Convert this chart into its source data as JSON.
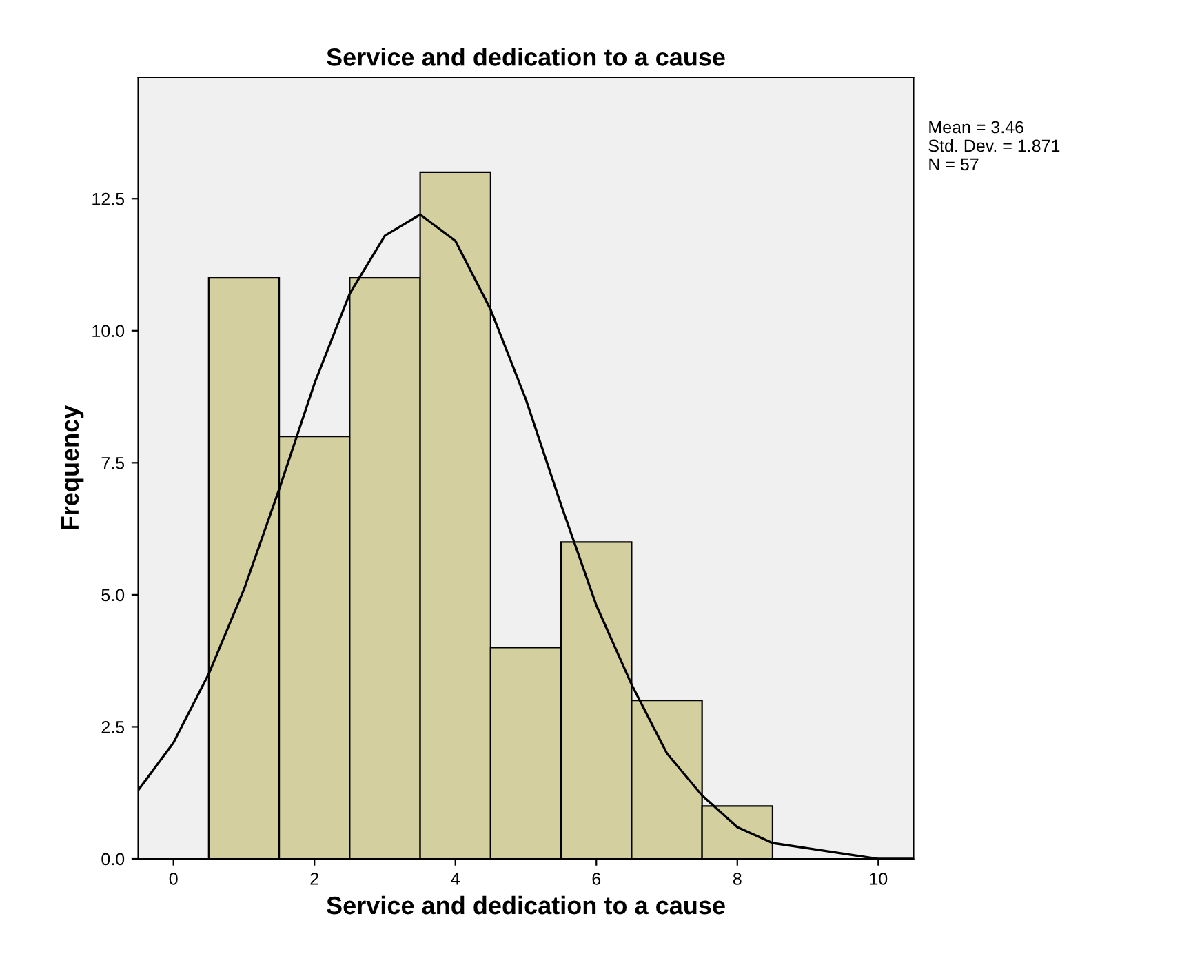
{
  "chart_data": {
    "type": "histogram",
    "title": "Service and dedication to a cause",
    "xlabel": "Service and dedication to a cause",
    "ylabel": "Frequency",
    "bins": [
      0.5,
      1.5,
      2.5,
      3.5,
      4.5,
      5.5,
      6.5,
      7.5,
      8.5
    ],
    "values": [
      11,
      8,
      11,
      13,
      4,
      6,
      3,
      1
    ],
    "color": "#d4cf9e",
    "series": [
      {
        "type": "line",
        "color": "#000000",
        "x": [
          -0.5,
          0,
          0.5,
          1,
          1.5,
          2,
          2.5,
          3,
          3.5,
          4,
          4.5,
          5,
          5.5,
          6,
          6.5,
          7,
          7.5,
          8,
          8.5,
          9,
          9.5,
          10,
          10.5
        ],
        "values": [
          1.3,
          2.2,
          3.5,
          5.1,
          7.0,
          9.0,
          10.7,
          11.8,
          12.2,
          11.7,
          10.4,
          8.7,
          6.7,
          4.8,
          3.3,
          2.0,
          1.2,
          0.6,
          0.3,
          0.2,
          0.1,
          0.0,
          0.0
        ]
      }
    ],
    "xlim": [
      -0.5,
      10.5
    ],
    "xticks": [
      0,
      2,
      4,
      6,
      8,
      10
    ],
    "ylim": [
      0,
      14.8
    ],
    "yticks": [
      {
        "value": 0,
        "label": "0.0"
      },
      {
        "value": 2.5,
        "label": "2.5"
      },
      {
        "value": 5,
        "label": "5.0"
      },
      {
        "value": 7.5,
        "label": "7.5"
      },
      {
        "value": 10,
        "label": "10.0"
      },
      {
        "value": 12.5,
        "label": "12.5"
      }
    ],
    "annotations": [
      "Mean = 3.46\nStd. Dev. = 1.871\nN = 57"
    ],
    "grid": false,
    "legend": false
  }
}
